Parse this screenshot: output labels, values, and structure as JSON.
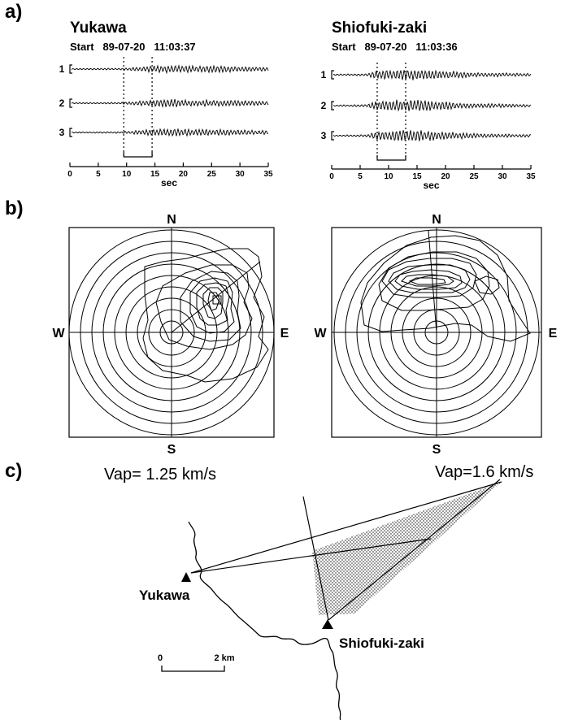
{
  "panels": {
    "a": "a)",
    "b": "b)",
    "c": "c)"
  },
  "seismograms": {
    "left": {
      "station": "Yukawa",
      "start": "Start   89-07-20   11:03:37",
      "trace_labels": [
        "1",
        "2",
        "3"
      ],
      "x_ticks": [
        "0",
        "5",
        "10",
        "15",
        "20",
        "25",
        "30",
        "35"
      ],
      "x_unit": "sec",
      "window_sec": [
        9.5,
        14.5
      ]
    },
    "right": {
      "station": "Shiofuki-zaki",
      "start": "Start   89-07-20   11:03:36",
      "trace_labels": [
        "1",
        "2",
        "3"
      ],
      "x_ticks": [
        "0",
        "5",
        "10",
        "15",
        "20",
        "25",
        "30",
        "35"
      ],
      "x_unit": "sec",
      "window_sec": [
        8,
        13
      ]
    }
  },
  "fk_spectra": {
    "compass": {
      "n": "N",
      "s": "S",
      "w": "W",
      "e": "E"
    },
    "left_vap": "Vap= 1.25 km/s",
    "right_vap": "Vap=1.6 km/s"
  },
  "map": {
    "station_a": "Yukawa",
    "station_b": "Shiofuki-zaki",
    "scale_zero": "0",
    "scale_dist": "2 km",
    "colors": {
      "marker": "#000000",
      "shade": "#b8b8b8"
    }
  }
}
